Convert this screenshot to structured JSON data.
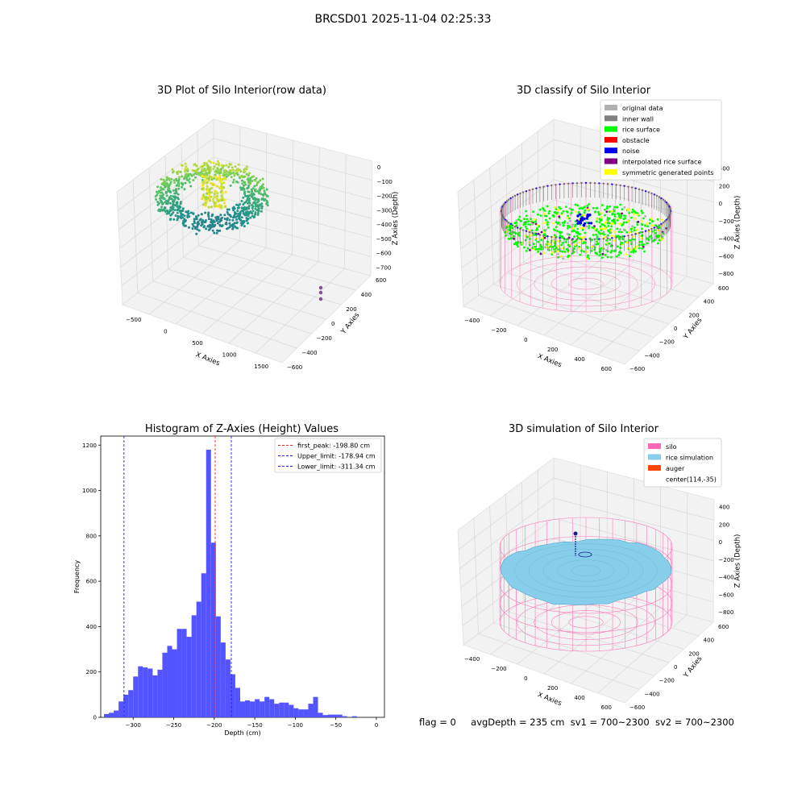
{
  "figure": {
    "suptitle": "BRCSD01 2025-11-04 02:25:33",
    "status": {
      "flag": "flag = 0",
      "avg_depth": "avgDepth = 235 cm",
      "sv1": "sv1 = 700~2300",
      "sv2": "sv2 = 700~2300"
    }
  },
  "colors": {
    "pane": "#f2f2f2",
    "pane_edge": "#e0e0e0",
    "grid": "#d9d9d9",
    "silo": "#ff69b4",
    "rice_sim": "#87ceeb",
    "auger": "#ff4500",
    "hist_bar": "#4b4bff",
    "peak_line": "#ff2020",
    "limit_line": "#2020ff"
  },
  "chart_data": [
    {
      "type": "scatter3d",
      "title": "3D Plot of Silo Interior(row data)",
      "xlabel": "X Axies",
      "ylabel": "Y Axies",
      "zlabel": "Z Axies (Depth)",
      "xticks": [
        "−500",
        "0",
        "500",
        "1000",
        "1500"
      ],
      "yticks": [
        "−600",
        "−400",
        "−200",
        "0",
        "200",
        "400",
        "600"
      ],
      "zticks": [
        "0",
        "−100",
        "−200",
        "−300",
        "−400",
        "−500",
        "−600",
        "−700"
      ],
      "colormap": "viridis",
      "outlier_points": [
        {
          "x": 1700,
          "y": 600,
          "z": -570
        },
        {
          "x": 1700,
          "y": 600,
          "z": -590
        },
        {
          "x": 1700,
          "y": 600,
          "z": -620
        }
      ]
    },
    {
      "type": "scatter3d",
      "title": "3D classify of Silo Interior",
      "xlabel": "X Axies",
      "ylabel": "Y Axies",
      "zlabel": "Z Axies (Depth)",
      "xticks": [
        "−400",
        "−200",
        "0",
        "200",
        "400",
        "600"
      ],
      "yticks": [
        "−600",
        "−400",
        "−200",
        "0",
        "200",
        "400",
        "600"
      ],
      "zticks": [
        "400",
        "200",
        "0",
        "−200",
        "−400",
        "−600",
        "−800"
      ],
      "legend": [
        {
          "label": "original data",
          "color": "#b0b0b0"
        },
        {
          "label": "inner wall",
          "color": "#808080"
        },
        {
          "label": "rice surface",
          "color": "#00ff00"
        },
        {
          "label": "obstacle",
          "color": "#ff0000"
        },
        {
          "label": "noise",
          "color": "#0000ee"
        },
        {
          "label": "interpolated rice surface",
          "color": "#800080"
        },
        {
          "label": "symmetric generated points",
          "color": "#ffff00"
        }
      ],
      "legend_loc": "upper right"
    },
    {
      "type": "bar",
      "title": "Histogram of Z-Axies (Height) Values",
      "xlabel": "Depth (cm)",
      "ylabel": "Frequency",
      "xlim": [
        -340,
        10
      ],
      "ylim": [
        0,
        1240
      ],
      "xticks": [
        -300,
        -250,
        -200,
        -150,
        -100,
        -50,
        0
      ],
      "yticks": [
        0,
        200,
        400,
        600,
        800,
        1000,
        1200
      ],
      "bin_width": 6,
      "bins_start": [
        -336,
        -330,
        -324,
        -318,
        -312,
        -306,
        -300,
        -294,
        -288,
        -282,
        -276,
        -270,
        -264,
        -258,
        -252,
        -246,
        -240,
        -234,
        -228,
        -222,
        -216,
        -210,
        -204,
        -198,
        -192,
        -186,
        -180,
        -174,
        -168,
        -162,
        -156,
        -150,
        -144,
        -138,
        -132,
        -126,
        -120,
        -114,
        -108,
        -102,
        -96,
        -90,
        -84,
        -78,
        -72,
        -66,
        -60,
        -54,
        -48,
        -42,
        -36,
        -30,
        -24,
        -18,
        -12,
        -6,
        0
      ],
      "values": [
        15,
        20,
        30,
        70,
        100,
        120,
        180,
        225,
        220,
        215,
        185,
        210,
        285,
        315,
        300,
        390,
        390,
        355,
        450,
        510,
        635,
        1180,
        770,
        445,
        330,
        255,
        190,
        130,
        70,
        75,
        70,
        80,
        70,
        90,
        80,
        60,
        65,
        65,
        55,
        40,
        35,
        35,
        60,
        90,
        20,
        10,
        12,
        12,
        12,
        5,
        0,
        5,
        0,
        0,
        0,
        0,
        0
      ],
      "vlines": [
        {
          "label": "first_peak: -198.80 cm",
          "x": -198.8,
          "color": "#ff2020"
        },
        {
          "label": "Upper_limit: -178.94 cm",
          "x": -178.94,
          "color": "#2020ff"
        },
        {
          "label": "Lower_limit: -311.34 cm",
          "x": -311.34,
          "color": "#2020ff"
        }
      ],
      "legend_loc": "upper right"
    },
    {
      "type": "surface3d",
      "title": "3D simulation of Silo Interior",
      "xlabel": "X Axies",
      "ylabel": "Y Axies",
      "zlabel": "Z Axies (Depth)",
      "xticks": [
        "−400",
        "−200",
        "0",
        "200",
        "400",
        "600"
      ],
      "yticks": [
        "−600",
        "−400",
        "−200",
        "0",
        "200",
        "400",
        "600"
      ],
      "zticks": [
        "400",
        "200",
        "0",
        "−200",
        "−400",
        "−600",
        "−800"
      ],
      "legend": [
        {
          "label": "silo",
          "color": "#ff69b4"
        },
        {
          "label": "rice simulation",
          "color": "#87ceeb"
        },
        {
          "label": "auger",
          "color": "#ff4500"
        },
        {
          "label": "center(114,-35)",
          "color": ""
        }
      ],
      "legend_loc": "upper right"
    }
  ]
}
